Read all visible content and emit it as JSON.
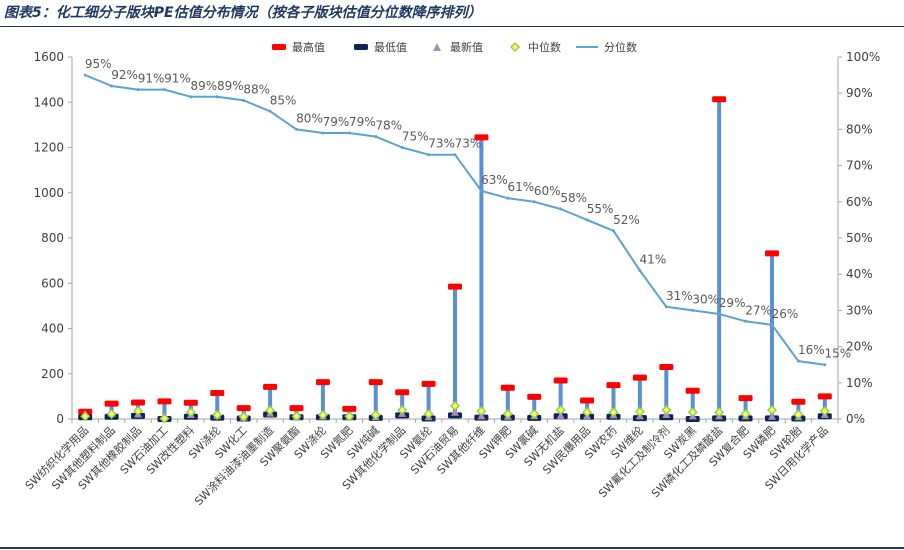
{
  "figure_title": "图表5：化工细分子版块PE估值分布情况（按各子版块估值分位数降序排列）",
  "chart_data": {
    "type": "line",
    "title": "化工细分子版块PE估值分布情况（按各子版块估值分位数降序排列）",
    "categories": [
      "SW纺织化学用品",
      "SW其他塑料制品",
      "SW其他橡胶制品",
      "SW石油加工",
      "SW改性塑料",
      "SW涤纶",
      "SW化工",
      "SW涂料油漆油墨制造",
      "SW聚氨酯",
      "SW涤纶",
      "SW氮肥",
      "SW纯碱",
      "SW其他化学制品",
      "SW氨纶",
      "SW石油贸易",
      "SW其他纤维",
      "SW钾肥",
      "SW氯碱",
      "SW无机盐",
      "SW民爆用品",
      "SW农药",
      "SW维纶",
      "SW氟化工及制冷剂",
      "SW炭黑",
      "SW磷化工及磷酸盐",
      "SW复合肥",
      "SW磷肥",
      "SW轮胎",
      "SW日用化学产品"
    ],
    "y_left": {
      "min": 0,
      "max": 1600,
      "step": 200,
      "ticks": [
        "0",
        "200",
        "400",
        "600",
        "800",
        "1000",
        "1200",
        "1400",
        "1600"
      ]
    },
    "y_right": {
      "min": 0,
      "max": 100,
      "step": 10,
      "ticks": [
        "0%",
        "10%",
        "20%",
        "30%",
        "40%",
        "50%",
        "60%",
        "70%",
        "80%",
        "90%",
        "100%"
      ]
    },
    "series": [
      {
        "name": "最高值",
        "axis": "left",
        "color": "#ff0000",
        "values": [
          32,
          68,
          73,
          78,
          72,
          115,
          48,
          142,
          48,
          163,
          45,
          163,
          118,
          155,
          585,
          1245,
          138,
          98,
          170,
          82,
          150,
          183,
          230,
          125,
          1413,
          92,
          732,
          76,
          100
        ]
      },
      {
        "name": "最低值",
        "axis": "left",
        "color": "#0f2454",
        "values": [
          8,
          10,
          14,
          0,
          10,
          6,
          2,
          20,
          8,
          8,
          8,
          5,
          16,
          2,
          16,
          6,
          6,
          5,
          12,
          10,
          10,
          4,
          8,
          0,
          3,
          3,
          3,
          2,
          12
        ]
      },
      {
        "name": "最新值",
        "axis": "left",
        "color": "#9e8fbf",
        "values": [
          22,
          26,
          22,
          14,
          20,
          16,
          8,
          26,
          12,
          13,
          12,
          10,
          25,
          10,
          30,
          14,
          12,
          15,
          16,
          14,
          18,
          14,
          20,
          14,
          14,
          14,
          12,
          10,
          20
        ]
      },
      {
        "name": "中位数",
        "axis": "left",
        "color": "#92d050",
        "values": [
          12,
          22,
          36,
          2,
          30,
          18,
          10,
          38,
          12,
          18,
          12,
          18,
          40,
          22,
          58,
          35,
          22,
          22,
          40,
          30,
          30,
          32,
          40,
          30,
          30,
          22,
          40,
          20,
          35
        ]
      },
      {
        "name": "分位数",
        "axis": "right",
        "color": "#5ba3cf",
        "values": [
          95,
          92,
          91,
          91,
          89,
          89,
          88,
          85,
          80,
          79,
          79,
          78,
          75,
          73,
          73,
          63,
          61,
          60,
          58,
          55,
          52,
          41,
          31,
          30,
          29,
          27,
          26,
          16,
          15
        ]
      }
    ],
    "percentile_labels": [
      "95%",
      "92%",
      "91%",
      "91%",
      "89%",
      "89%",
      "88%",
      "85%",
      "80%",
      "79%",
      "79%",
      "78%",
      "75%",
      "73%",
      "73%",
      "63%",
      "61%",
      "60%",
      "58%",
      "55%",
      "52%",
      "41%",
      "31%",
      "30%",
      "29%",
      "27%",
      "26%",
      "16%",
      "15%"
    ],
    "legend": {
      "position": "top",
      "items": [
        "最高值",
        "最低值",
        "最新值",
        "中位数",
        "分位数"
      ]
    },
    "range_bar_color": "#5b8fd4",
    "gridlines": false
  }
}
